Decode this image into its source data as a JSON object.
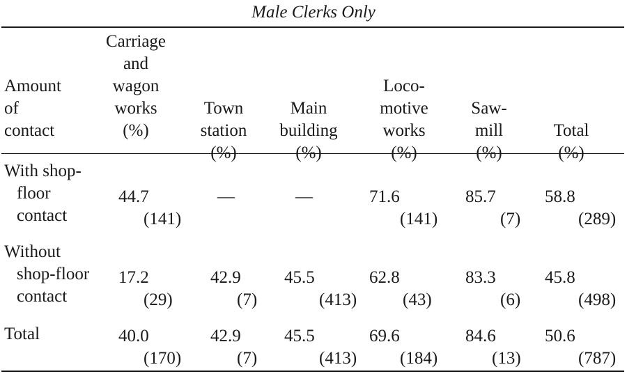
{
  "caption": "Male Clerks Only",
  "headers": {
    "stub": [
      "Amount",
      "of",
      "contact"
    ],
    "carriage": [
      "Carriage",
      "and",
      "wagon",
      "works",
      "(%)"
    ],
    "town": [
      "Town",
      "station",
      "(%)"
    ],
    "main": [
      "Main",
      "building",
      "(%)"
    ],
    "loco": [
      "Loco-",
      "motive",
      "works",
      "(%)"
    ],
    "saw": [
      "Saw-",
      "mill",
      "(%)"
    ],
    "total": [
      "Total",
      "(%)"
    ]
  },
  "rows": [
    {
      "label": [
        "With shop-",
        "floor",
        "contact"
      ],
      "carriage": {
        "pct": "44.7",
        "n": "(141)"
      },
      "town": {
        "pct": "—",
        "n": ""
      },
      "main": {
        "pct": "—",
        "n": ""
      },
      "loco": {
        "pct": "71.6",
        "n": "(141)"
      },
      "saw": {
        "pct": "85.7",
        "n": "(7)"
      },
      "total": {
        "pct": "58.8",
        "n": "(289)"
      }
    },
    {
      "label": [
        "Without",
        "shop-floor",
        "contact"
      ],
      "carriage": {
        "pct": "17.2",
        "n": "(29)"
      },
      "town": {
        "pct": "42.9",
        "n": "(7)"
      },
      "main": {
        "pct": "45.5",
        "n": "(413)"
      },
      "loco": {
        "pct": "62.8",
        "n": "(43)"
      },
      "saw": {
        "pct": "83.3",
        "n": "(6)"
      },
      "total": {
        "pct": "45.8",
        "n": "(498)"
      }
    },
    {
      "label": [
        "Total"
      ],
      "carriage": {
        "pct": "40.0",
        "n": "(170)"
      },
      "town": {
        "pct": "42.9",
        "n": "(7)"
      },
      "main": {
        "pct": "45.5",
        "n": "(413)"
      },
      "loco": {
        "pct": "69.6",
        "n": "(184)"
      },
      "saw": {
        "pct": "84.6",
        "n": "(13)"
      },
      "total": {
        "pct": "50.6",
        "n": "(787)"
      }
    }
  ]
}
